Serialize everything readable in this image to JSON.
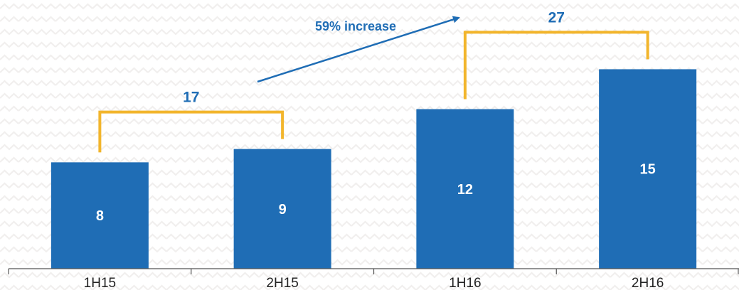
{
  "chart_data": {
    "type": "bar",
    "categories": [
      "1H15",
      "2H15",
      "1H16",
      "2H16"
    ],
    "values": [
      8,
      9,
      12,
      15
    ],
    "data_labels": [
      "8",
      "9",
      "12",
      "15"
    ],
    "ylim": [
      0,
      17
    ],
    "grid": false,
    "title": "",
    "xlabel": "",
    "ylabel": "",
    "bracket_groups": [
      {
        "label": "17",
        "from": "1H15",
        "to": "2H15"
      },
      {
        "label": "27",
        "from": "1H16",
        "to": "2H16"
      }
    ],
    "arrow_annotation": {
      "text": "59% increase"
    }
  },
  "colors": {
    "bar": "#1f6db5",
    "bracket": "#f2b52c",
    "annotation": "#1f6db5",
    "axis": "#555555"
  }
}
